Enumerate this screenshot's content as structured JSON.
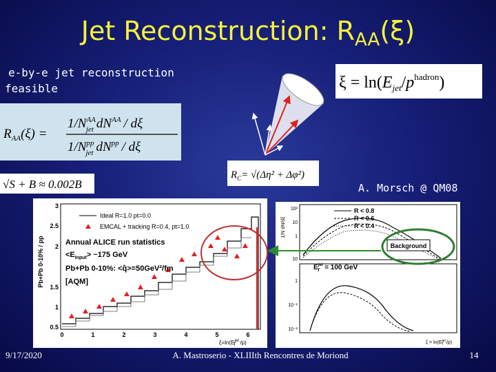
{
  "title": {
    "main": "Jet Reconstruction: R",
    "subscript": "AA",
    "end": "(ξ)"
  },
  "intro": [
    "e-by-e jet reconstruction",
    "feasible"
  ],
  "formulas": {
    "xi": {
      "lhs": "ξ = ln(",
      "e": "E",
      "jet": "jet",
      "slash": "/",
      "p": "p",
      "hadron": "hadron",
      "close": ")"
    },
    "raa": {
      "lhs": "R",
      "aa": "AA",
      "arg": "(ξ) =",
      "num": "1/N",
      "num_sup": "AA",
      "num_sub": "jet",
      "num_dn": "dN",
      "num_dn_sup": "AA",
      "num_end": "/ dξ",
      "den": "1/N",
      "den_sup": "pp",
      "den_sub": "jet",
      "den_dn": "dN",
      "den_dn_sup": "pp",
      "den_end": "/ dξ"
    },
    "rc": {
      "lhs": "R",
      "c": "C",
      "rhs": "= √(Δη² + Δφ²)"
    },
    "significance": "√S + B ≈ 0.002B"
  },
  "credit": "A. Morsch @ QM08",
  "left_plot": {
    "ylabel": "Pb+Pb 0-10% / pp",
    "legend": [
      "Ideal R=1.0 pt=0.0",
      "EMCAL + tracking R=0.4, pt=1.0"
    ],
    "notes": [
      "Annual ALICE run statistics",
      "<E",
      "Input",
      "> ~175 GeV",
      "Pb+Pb 0-10%: <q̂>=50GeV²/fm",
      "[AQM]"
    ],
    "yticks": [
      "3",
      "2.5",
      "2",
      "1.5",
      "1",
      "0.5"
    ],
    "xticks": [
      "0",
      "1",
      "2",
      "3",
      "4",
      "5",
      "6"
    ],
    "xlabel": "ξ=ln(E",
    "xlabel_sup": "jet",
    "xlabel_sub": "T",
    "xlabel_end": "/p)"
  },
  "right_plot": {
    "ylabel": "1/N dN/dξ",
    "legend": [
      "R < 0.8",
      "R < 0.6",
      "R < 0.4"
    ],
    "background": "Background",
    "energy": "E",
    "energy_sup": "jet",
    "energy_sub": "T",
    "energy_end": " = 100 GeV",
    "yticks": [
      "10²",
      "10",
      "1",
      "10",
      "1",
      "10⁻¹",
      "10⁻²"
    ],
    "xlabel": "ξ = ln(E",
    "xlabel_sup": "jet",
    "xlabel_sub": "T",
    "xlabel_end": "/p)"
  },
  "footer": {
    "date": "9/17/2020",
    "center": "A. Mastroserio - XLIIIth Rencontres de Moriond",
    "page": "14"
  }
}
